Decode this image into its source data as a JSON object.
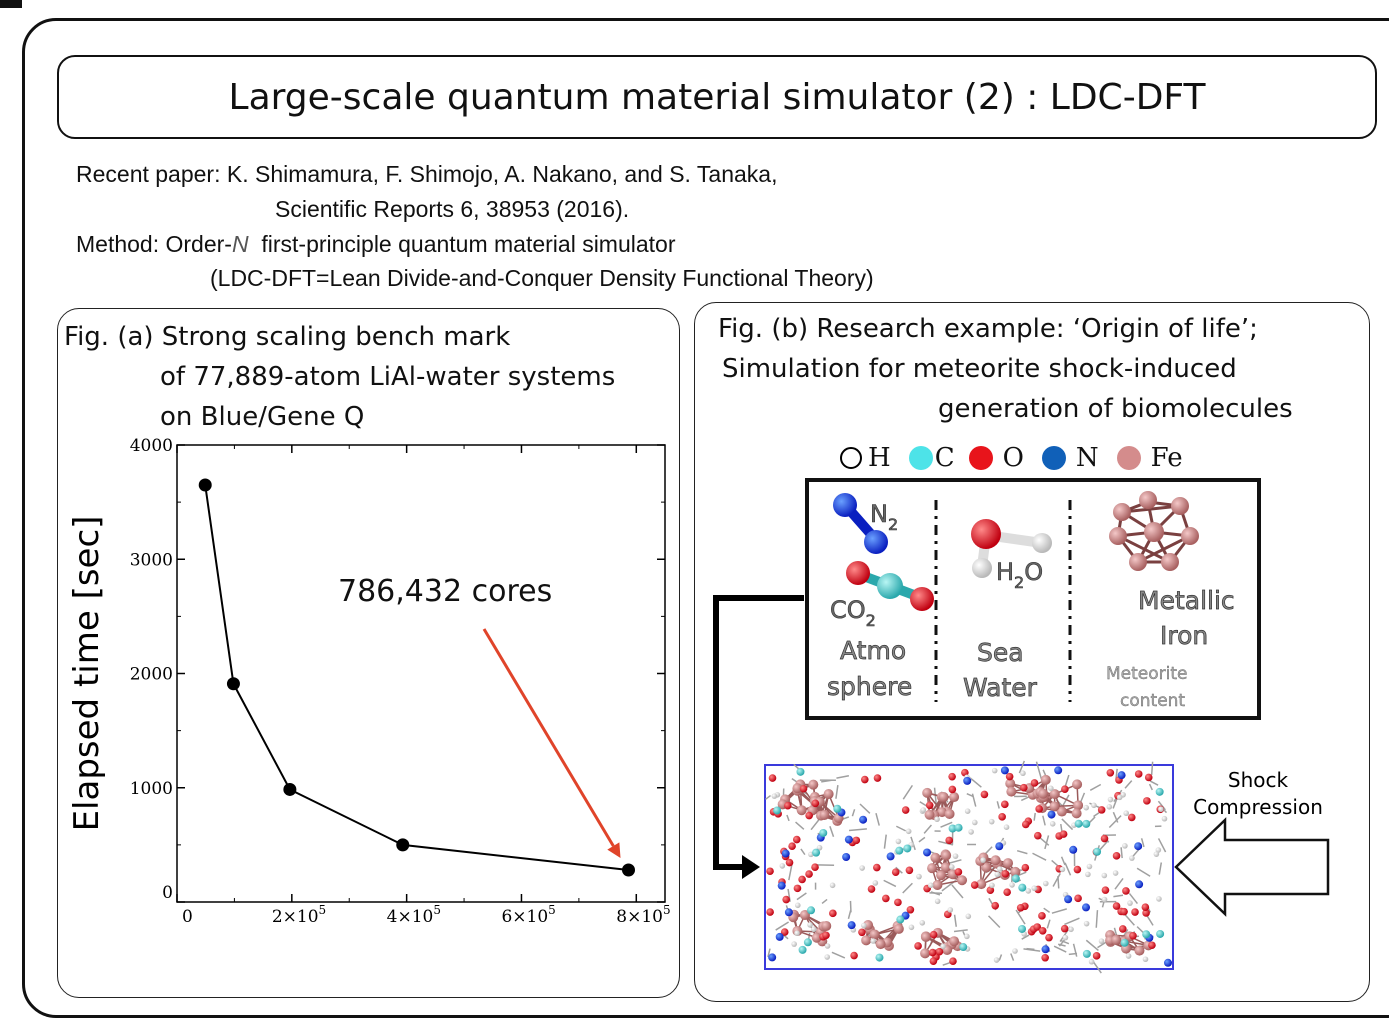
{
  "title": "Large-scale quantum material simulator (2) : LDC-DFT",
  "info": {
    "paper_label": "Recent paper: K. Shimamura, F. Shimojo, A. Nakano, and S. Tanaka,",
    "paper_journal": "Scientific Reports 6, 38953 (2016).",
    "method_prefix": "Method: Order-",
    "method_n": "N",
    "method_rest": "  first-principle quantum material simulator",
    "method_detail": "(LDC-DFT=Lean Divide-and-Conquer Density Functional Theory)"
  },
  "panel_a": {
    "caption_line1": "Fig. (a)  Strong scaling bench mark",
    "caption_line2": "of  77,889-atom LiAl-water systems",
    "caption_line3": "on Blue/Gene Q",
    "annotation": "786,432 cores"
  },
  "chart_data": {
    "type": "line",
    "ylabel": "Elapsed time [sec]",
    "xlabel": "",
    "xlim": [
      0,
      850000
    ],
    "ylim": [
      0,
      4000
    ],
    "y_ticks": [
      "0",
      "1000",
      "2000",
      "3000",
      "4000"
    ],
    "x_ticks": [
      {
        "value": 0,
        "base": "0",
        "exp": ""
      },
      {
        "value": 200000,
        "base": "2×10",
        "exp": "5"
      },
      {
        "value": 400000,
        "base": "4×10",
        "exp": "5"
      },
      {
        "value": 600000,
        "base": "6×10",
        "exp": "5"
      },
      {
        "value": 800000,
        "base": "8×10",
        "exp": "5"
      }
    ],
    "series": [
      {
        "x": [
          49152,
          98304,
          196608,
          393216,
          786432
        ],
        "y": [
          3650,
          1910,
          985,
          500,
          280
        ]
      }
    ],
    "grid": false,
    "line_color": "#000000",
    "arrow_color": "#e0442a"
  },
  "panel_b": {
    "caption_line1": "Fig. (b)  Research example: ‘Origin of life’;",
    "caption_line2": "Simulation for meteorite shock-induced",
    "caption_line3": "generation of biomolecules",
    "legend": [
      {
        "label": "H",
        "color": "#ffffff"
      },
      {
        "label": "C",
        "color": "#4de3e8"
      },
      {
        "label": "O",
        "color": "#e8141b"
      },
      {
        "label": "N",
        "color": "#1060b8"
      },
      {
        "label": "Fe",
        "color": "#d48c8c"
      }
    ],
    "molecules": {
      "n2": {
        "base": "N",
        "sub": "2"
      },
      "co2": {
        "base": "CO",
        "sub": "2"
      },
      "h2o": {
        "pre": "H",
        "sub": "2",
        "post": "O"
      },
      "metallic": "Metallic",
      "iron": "Iron",
      "atmo": "Atmo",
      "sphere": "sphere",
      "sea": "Sea",
      "water": "Water",
      "meteorite": "Meteorite",
      "content": "content"
    },
    "shock_line1": "Shock",
    "shock_line2": "Compression"
  }
}
